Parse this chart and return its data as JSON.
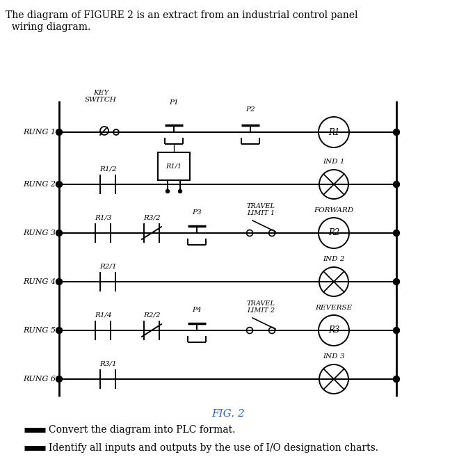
{
  "title_line1": "The diagram of FIGURE 2 is an extract from an industrial control panel",
  "title_line2": "  wiring diagram.",
  "fig_label": "FIG. 2",
  "bullet1": "Convert the diagram into PLC format.",
  "bullet2": "Identify all inputs and outputs by the use of I/O designation charts.",
  "rung_labels": [
    "RUNG 1",
    "RUNG 2",
    "RUNG 3",
    "RUNG 4",
    "RUNG 5",
    "RUNG 6"
  ],
  "text_color": "#000000",
  "line_color": "#000000",
  "fig_label_color": "#3366bb",
  "bullet_color": "#2244aa",
  "lw_rung": 1.4,
  "lw_rail": 2.0,
  "lw_symbol": 1.4
}
